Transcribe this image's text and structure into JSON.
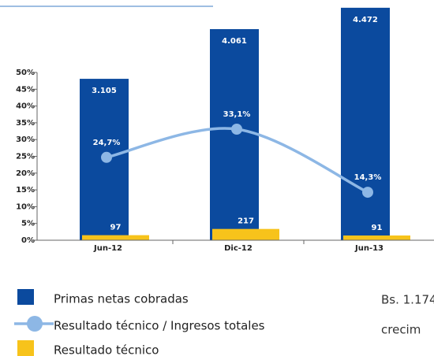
{
  "chart_data": {
    "type": "bar",
    "categories": [
      "Jun-12",
      "Dic-12",
      "Jun-13"
    ],
    "ylim": [
      0,
      50
    ],
    "yticks": [
      {
        "value": 0,
        "label": "0%"
      },
      {
        "value": 5,
        "label": "5%"
      },
      {
        "value": 10,
        "label": "10%"
      },
      {
        "value": 15,
        "label": "15%"
      },
      {
        "value": 20,
        "label": "20%"
      },
      {
        "value": 25,
        "label": "25%"
      },
      {
        "value": 30,
        "label": "30%"
      },
      {
        "value": 35,
        "label": "35%"
      },
      {
        "value": 40,
        "label": "40%"
      },
      {
        "value": 45,
        "label": "45%"
      },
      {
        "value": 50,
        "label": "50%"
      }
    ],
    "series": [
      {
        "name": "Primas netas cobradas",
        "type": "bar",
        "axis": "y2",
        "color": "#0b4a9e",
        "values": [
          3105,
          4061,
          4472
        ],
        "value_labels": [
          "3.105",
          "4.061",
          "4.472"
        ]
      },
      {
        "name": "Resultado técnico / Ingresos totales",
        "type": "line",
        "color": "#8db7e5",
        "values": [
          24.7,
          33.1,
          14.3
        ],
        "value_labels": [
          "24,7%",
          "33,1%",
          "14,3%"
        ]
      },
      {
        "name": "Resultado técnico",
        "type": "bar",
        "axis": "y2",
        "color": "#f7c31b",
        "values": [
          97,
          217,
          91
        ]
      }
    ]
  },
  "side_text": [
    "Bs. 1.174",
    "crecim"
  ]
}
